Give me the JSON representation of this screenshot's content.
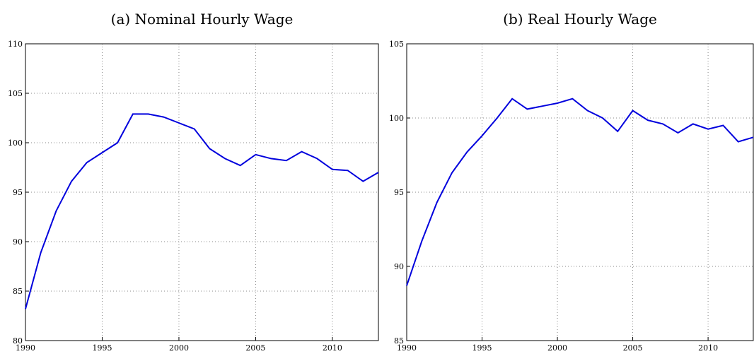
{
  "chart_data": [
    {
      "type": "line",
      "title": "(a) Nominal Hourly Wage",
      "x": [
        1990,
        1991,
        1992,
        1993,
        1994,
        1995,
        1996,
        1997,
        1998,
        1999,
        2000,
        2001,
        2002,
        2003,
        2004,
        2005,
        2006,
        2007,
        2008,
        2009,
        2010,
        2011,
        2012,
        2013
      ],
      "series": [
        {
          "color": "#0000dd",
          "values": [
            83.2,
            88.9,
            93.1,
            96.1,
            98.0,
            99.0,
            100.0,
            102.9,
            102.9,
            102.6,
            102.0,
            101.4,
            99.4,
            98.4,
            97.7,
            98.8,
            98.4,
            98.2,
            99.1,
            98.4,
            97.3,
            97.2,
            96.1,
            97.0
          ]
        }
      ],
      "xlim": [
        1990,
        2013
      ],
      "xticks": [
        1990,
        1995,
        2000,
        2005,
        2010
      ],
      "ylim": [
        80,
        110
      ],
      "yticks": [
        80,
        85,
        90,
        95,
        100,
        105,
        110
      ],
      "grid": true
    },
    {
      "type": "line",
      "title": "(b) Real Hourly Wage",
      "x": [
        1990,
        1991,
        1992,
        1993,
        1994,
        1995,
        1996,
        1997,
        1998,
        1999,
        2000,
        2001,
        2002,
        2003,
        2004,
        2005,
        2006,
        2007,
        2008,
        2009,
        2010,
        2011,
        2012,
        2013
      ],
      "series": [
        {
          "color": "#0000dd",
          "values": [
            88.7,
            91.7,
            94.3,
            96.3,
            97.7,
            98.8,
            100.0,
            101.3,
            100.6,
            100.8,
            101.0,
            101.3,
            100.5,
            100.0,
            99.1,
            100.5,
            99.85,
            99.6,
            99.0,
            99.6,
            99.25,
            99.5,
            98.4,
            98.7
          ]
        }
      ],
      "xlim": [
        1990,
        2013
      ],
      "xticks": [
        1990,
        1995,
        2000,
        2005,
        2010
      ],
      "ylim": [
        85,
        105
      ],
      "yticks": [
        85,
        90,
        95,
        100,
        105
      ],
      "grid": true
    }
  ]
}
